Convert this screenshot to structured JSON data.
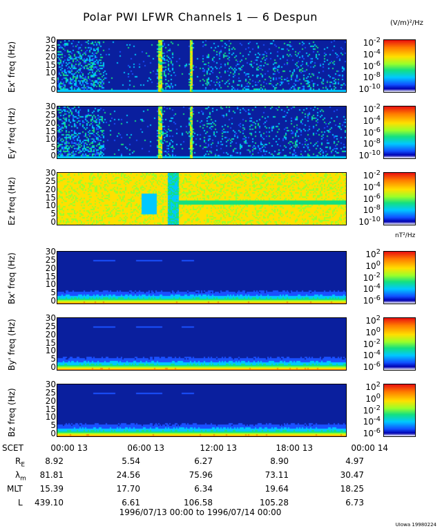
{
  "title": "Polar PWI LFWR Channels 1 — 6 Despun",
  "credit": "UIowa 19980224",
  "chart_data": {
    "type": "heatmap",
    "title": "Polar PWI LFWR Channels 1 — 6 Despun",
    "xlabel": "SCET",
    "x_range": [
      "1996/07/13 00:00",
      "1996/07/14 00:00"
    ],
    "x_ticks": [
      "00:00 13",
      "06:00 13",
      "12:00 13",
      "18:00 13",
      "00:00 14"
    ],
    "date_range_label": "1996/07/13 00:00 to 1996/07/14 00:00",
    "panels": [
      {
        "id": "ex",
        "ylabel": "Ex' freq (Hz)",
        "ylim": [
          0,
          32
        ],
        "yticks": [
          "30",
          "25",
          "20",
          "15",
          "10",
          "5",
          "0"
        ],
        "colorbar_unit": "(V/m)²/Hz",
        "colorbar_range": [
          -10,
          -2
        ],
        "colorbar_ticks": [
          {
            "base": "10",
            "exp": "-2"
          },
          {
            "base": "10",
            "exp": "-4"
          },
          {
            "base": "10",
            "exp": "-6"
          },
          {
            "base": "10",
            "exp": "-8"
          },
          {
            "base": "10",
            "exp": "-10"
          }
        ]
      },
      {
        "id": "ey",
        "ylabel": "Ey' freq (Hz)",
        "ylim": [
          0,
          32
        ],
        "yticks": [
          "30",
          "25",
          "20",
          "15",
          "10",
          "5",
          "0"
        ],
        "colorbar_range": [
          -10,
          -2
        ],
        "colorbar_ticks": [
          {
            "base": "10",
            "exp": "-2"
          },
          {
            "base": "10",
            "exp": "-4"
          },
          {
            "base": "10",
            "exp": "-6"
          },
          {
            "base": "10",
            "exp": "-8"
          },
          {
            "base": "10",
            "exp": "-10"
          }
        ]
      },
      {
        "id": "ez",
        "ylabel": "Ez freq (Hz)",
        "ylim": [
          0,
          32
        ],
        "yticks": [
          "30",
          "25",
          "20",
          "15",
          "10",
          "5",
          "0"
        ],
        "colorbar_range": [
          -10,
          -2
        ],
        "colorbar_ticks": [
          {
            "base": "10",
            "exp": "-2"
          },
          {
            "base": "10",
            "exp": "-4"
          },
          {
            "base": "10",
            "exp": "-6"
          },
          {
            "base": "10",
            "exp": "-8"
          },
          {
            "base": "10",
            "exp": "-10"
          }
        ]
      },
      {
        "id": "bx",
        "ylabel": "Bx' freq (Hz)",
        "ylim": [
          0,
          32
        ],
        "yticks": [
          "30",
          "25",
          "20",
          "15",
          "10",
          "5",
          "0"
        ],
        "colorbar_unit": "nT²/Hz",
        "colorbar_range": [
          -6,
          2
        ],
        "colorbar_ticks": [
          {
            "base": "10",
            "exp": "2"
          },
          {
            "base": "10",
            "exp": "0"
          },
          {
            "base": "10",
            "exp": "-2"
          },
          {
            "base": "10",
            "exp": "-4"
          },
          {
            "base": "10",
            "exp": "-6"
          }
        ]
      },
      {
        "id": "by",
        "ylabel": "By' freq (Hz)",
        "ylim": [
          0,
          32
        ],
        "yticks": [
          "30",
          "25",
          "20",
          "15",
          "10",
          "5",
          "0"
        ],
        "colorbar_range": [
          -6,
          2
        ],
        "colorbar_ticks": [
          {
            "base": "10",
            "exp": "2"
          },
          {
            "base": "10",
            "exp": "0"
          },
          {
            "base": "10",
            "exp": "-2"
          },
          {
            "base": "10",
            "exp": "-4"
          },
          {
            "base": "10",
            "exp": "-6"
          }
        ]
      },
      {
        "id": "bz",
        "ylabel": "Bz freq (Hz)",
        "ylim": [
          0,
          32
        ],
        "yticks": [
          "30",
          "25",
          "20",
          "15",
          "10",
          "5",
          "0"
        ],
        "colorbar_range": [
          -6,
          2
        ],
        "colorbar_ticks": [
          {
            "base": "10",
            "exp": "2"
          },
          {
            "base": "10",
            "exp": "0"
          },
          {
            "base": "10",
            "exp": "-2"
          },
          {
            "base": "10",
            "exp": "-4"
          },
          {
            "base": "10",
            "exp": "-6"
          }
        ]
      }
    ],
    "ephemeris": [
      {
        "label": "R",
        "sub": "E",
        "values": [
          "8.92",
          "5.54",
          "6.27",
          "8.90",
          "4.97"
        ]
      },
      {
        "label": "λ",
        "sub": "m",
        "values": [
          "81.81",
          "24.56",
          "75.96",
          "73.11",
          "30.47"
        ]
      },
      {
        "label": "MLT",
        "sub": "",
        "values": [
          "15.39",
          "17.70",
          "6.34",
          "19.64",
          "18.25"
        ]
      },
      {
        "label": "L",
        "sub": "",
        "values": [
          "439.10",
          "6.61",
          "106.58",
          "105.28",
          "6.73"
        ]
      }
    ]
  }
}
